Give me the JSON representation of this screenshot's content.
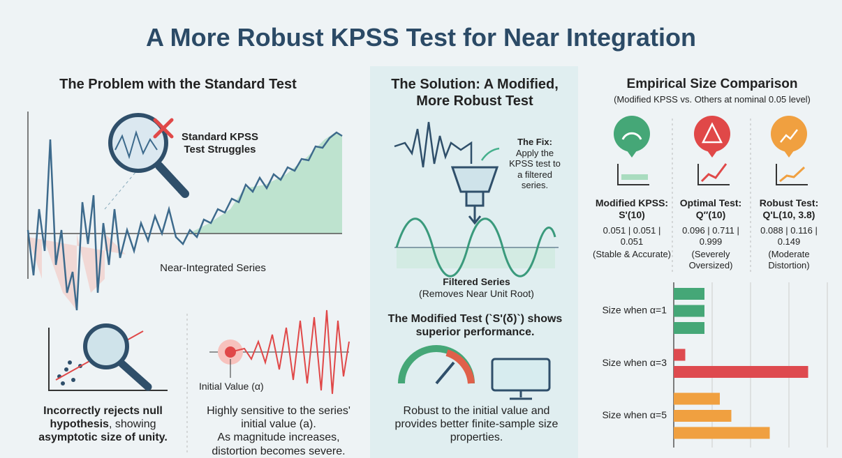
{
  "title": "A More Robust KPSS Test for Near Integration",
  "problem": {
    "heading": "The Problem with the Standard Test",
    "callout": "Standard KPSS Test Struggles",
    "series_label": "Near-Integrated Series",
    "rejects": {
      "bold_start": "Incorrectly rejects null hypothesis",
      "middle": ", showing",
      "bold_end": "asymptotic size of unity."
    },
    "initial_value_label": "Initial Value (α)",
    "sensitivity": "Highly sensitive to the series' initial value (a).",
    "severity": "As magnitude increases, distortion becomes severe."
  },
  "solution": {
    "heading": "The Solution: A Modified, More Robust Test",
    "fix_label": "The Fix:",
    "fix_text": "Apply the KPSS test to a filtered series.",
    "filtered_label": "Filtered Series",
    "filtered_note": "(Removes Near Unit Root)",
    "modified": "The Modified Test (`S'(δ)`) shows superior performance.",
    "benefit": "Robust to the initial value and provides better finite-sample size properties."
  },
  "comparison": {
    "heading": "Empirical Size Comparison",
    "subtitle": "(Modified KPSS vs. Others at nominal 0.05 level)",
    "tests": [
      {
        "name": "Modified KPSS: S'(10)",
        "values": "0.051 | 0.051 | 0.051",
        "note": "(Stable & Accurate)"
      },
      {
        "name": "Optimal Test: Q″(10)",
        "values": "0.096 | 0.711 | 0.999",
        "note": "(Severely Oversized)"
      },
      {
        "name": "Robust Test: Q'L(10, 3.8)",
        "values": "0.088 | 0.116 | 0.149",
        "note": "(Moderate Distortion)"
      }
    ]
  },
  "chart_data": {
    "type": "bar",
    "orientation": "horizontal",
    "xlim": [
      0,
      4
    ],
    "grid": true,
    "groups": [
      {
        "label": "Size when α=1",
        "color": "#45a777",
        "values": [
          0.8,
          0.8,
          0.8
        ]
      },
      {
        "label": "Size when α=3",
        "color": "#de4a4f",
        "values": [
          0.3,
          3.5
        ]
      },
      {
        "label": "Size when α=5",
        "color": "#f0a040",
        "values": [
          1.2,
          1.5,
          2.5
        ]
      }
    ]
  }
}
